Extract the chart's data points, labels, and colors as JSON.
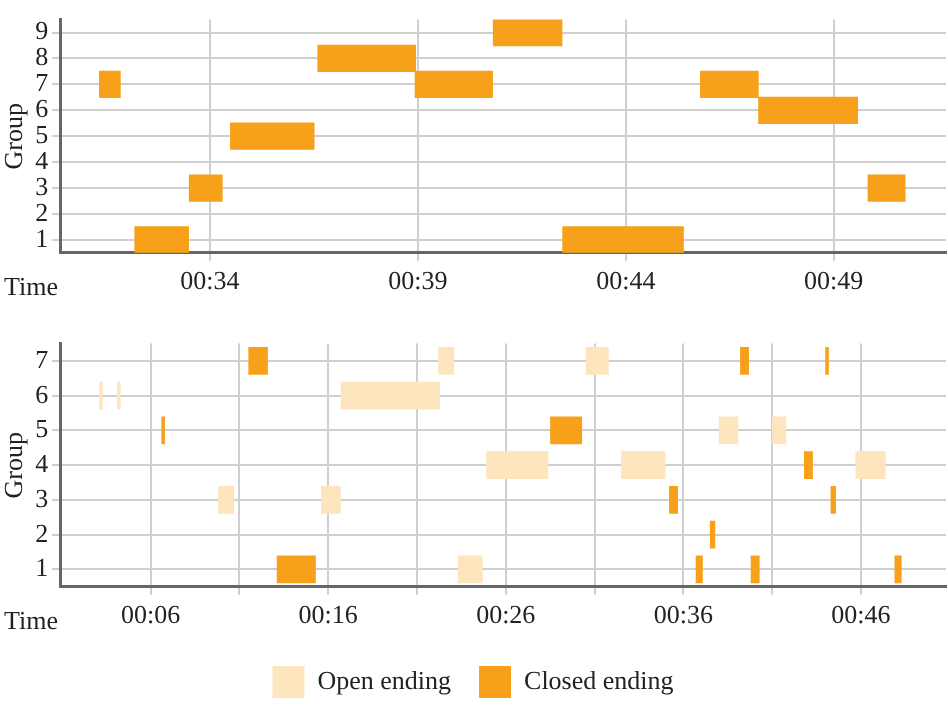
{
  "chart_data": [
    {
      "type": "bar",
      "orientation": "horizontal",
      "xlabel": "Time",
      "ylabel": "Group",
      "categories": [
        "9",
        "8",
        "7",
        "6",
        "5",
        "4",
        "3",
        "2",
        "1"
      ],
      "xlim": [
        30.4,
        51.7
      ],
      "xticks": [
        {
          "value": 34,
          "label": "00:34"
        },
        {
          "value": 39,
          "label": "00:39"
        },
        {
          "value": 44,
          "label": "00:44"
        },
        {
          "value": 49,
          "label": "00:49"
        }
      ],
      "grid": true,
      "series": [
        {
          "color": "#f7a11a",
          "base": [
            40.82,
            36.6,
            31.35,
            47.2,
            34.5,
            null,
            33.51,
            null,
            32.2
          ],
          "values": [
            1.64,
            2.34,
            0.49,
            2.37,
            2.0,
            null,
            0.78,
            null,
            1.28
          ]
        },
        {
          "color": "#f7a11a",
          "base": [
            null,
            null,
            38.94,
            null,
            null,
            null,
            49.83,
            null,
            42.49
          ],
          "values": [
            null,
            null,
            1.85,
            null,
            null,
            null,
            0.88,
            null,
            2.89
          ]
        },
        {
          "color": "#f7a11a",
          "base": [
            null,
            null,
            45.8,
            null,
            null,
            null,
            null,
            null,
            null
          ],
          "values": [
            null,
            null,
            1.38,
            null,
            null,
            null,
            null,
            null,
            null
          ]
        }
      ]
    },
    {
      "type": "bar",
      "orientation": "horizontal",
      "xlabel": "Time",
      "ylabel": "Group",
      "categories": [
        "7",
        "6",
        "5",
        "4",
        "3",
        "2",
        "1"
      ],
      "xlim": [
        0.9,
        50.8
      ],
      "xticks": [
        {
          "value": 6,
          "label": "00:06"
        },
        {
          "value": 11,
          "label": null
        },
        {
          "value": 16,
          "label": "00:16"
        },
        {
          "value": 21,
          "label": null
        },
        {
          "value": 26,
          "label": "00:26"
        },
        {
          "value": 31,
          "label": null
        },
        {
          "value": 36,
          "label": "00:36"
        },
        {
          "value": 41,
          "label": null
        },
        {
          "value": 46,
          "label": "00:46"
        }
      ],
      "grid": true,
      "legend": "bottom",
      "series": [
        {
          "name": "Open ending",
          "color": "#fde5bd",
          "base": [
            22.2,
            3.1,
            38.0,
            24.9,
            9.8,
            null,
            23.3
          ],
          "values": [
            0.9,
            0.2,
            1.1,
            3.5,
            0.9,
            null,
            1.4
          ]
        },
        {
          "color": "#fde5bd",
          "base": [
            30.5,
            4.1,
            41.0,
            32.5,
            15.6,
            null,
            null
          ],
          "values": [
            1.3,
            0.2,
            0.8,
            2.5,
            1.1,
            null,
            null
          ]
        },
        {
          "color": "#fde5bd",
          "base": [
            null,
            16.7,
            null,
            45.7,
            null,
            null,
            null
          ],
          "values": [
            null,
            5.6,
            null,
            1.7,
            null,
            null,
            null
          ]
        },
        {
          "name": "Closed ending",
          "color": "#f7a11a",
          "base": [
            11.5,
            null,
            6.6,
            42.8,
            35.2,
            37.5,
            13.1
          ],
          "values": [
            1.1,
            null,
            0.2,
            0.5,
            0.5,
            0.3,
            2.2
          ]
        },
        {
          "color": "#f7a11a",
          "base": [
            39.2,
            null,
            28.5,
            null,
            44.3,
            null,
            36.7
          ],
          "values": [
            0.5,
            null,
            1.8,
            null,
            0.3,
            null,
            0.4
          ]
        },
        {
          "color": "#f7a11a",
          "base": [
            44.0,
            null,
            null,
            null,
            null,
            null,
            39.8
          ],
          "values": [
            0.2,
            null,
            null,
            null,
            null,
            null,
            0.5
          ]
        },
        {
          "color": "#f7a11a",
          "base": [
            null,
            null,
            null,
            null,
            null,
            null,
            47.9
          ],
          "values": [
            null,
            null,
            null,
            null,
            null,
            null,
            0.4
          ]
        }
      ]
    }
  ]
}
